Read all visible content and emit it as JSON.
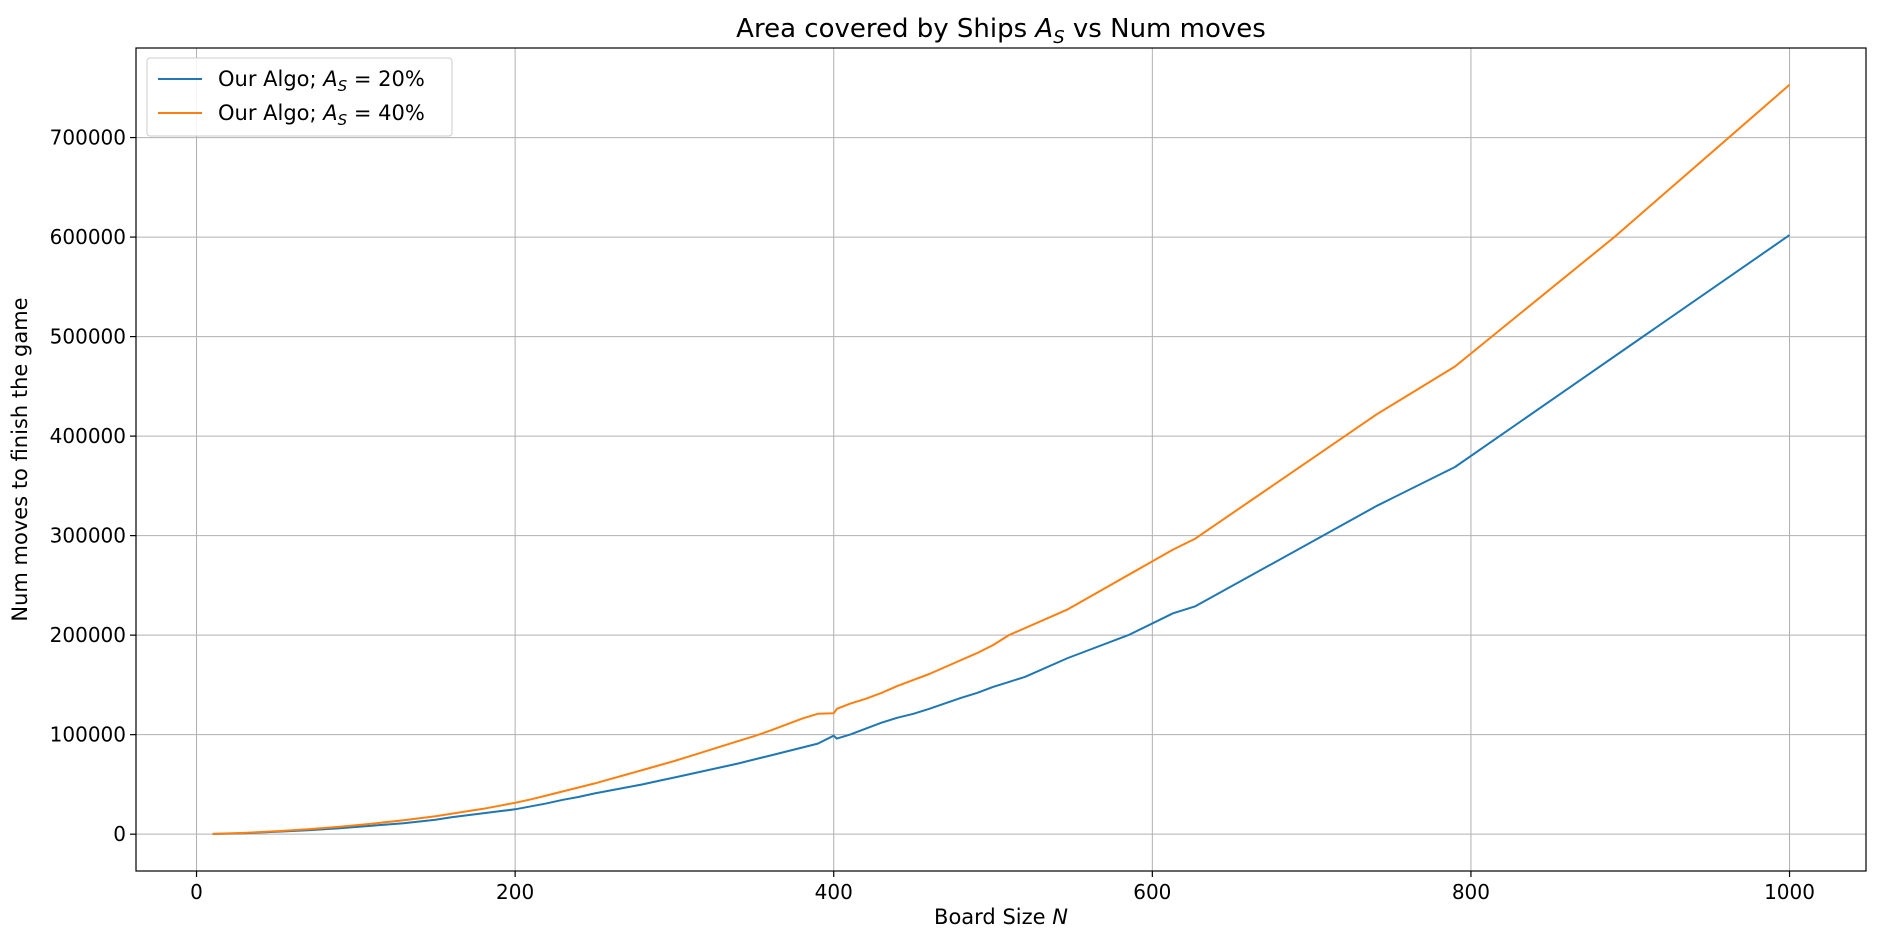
{
  "chart_data": {
    "type": "line",
    "title": "Area covered by Ships A_S vs Num moves",
    "title_parts": {
      "prefix": "Area covered by Ships ",
      "sym_main": "A",
      "sym_sub": "S",
      "suffix": " vs Num moves"
    },
    "xlabel": "Board Size N",
    "xlabel_parts": {
      "text": "Board Size ",
      "sym": "N"
    },
    "ylabel": "Num moves to finish the game",
    "xlim": [
      -38,
      1048
    ],
    "ylim": [
      -37000,
      790000
    ],
    "xticks": [
      0,
      200,
      400,
      600,
      800,
      1000
    ],
    "xtick_labels": [
      "0",
      "200",
      "400",
      "600",
      "800",
      "1000"
    ],
    "yticks": [
      0,
      100000,
      200000,
      300000,
      400000,
      500000,
      600000,
      700000
    ],
    "ytick_labels": [
      "0",
      "100000",
      "200000",
      "300000",
      "400000",
      "500000",
      "600000",
      "700000"
    ],
    "grid": true,
    "legend_position": "top-left",
    "series": [
      {
        "name": "Our Algo; A_S = 20%",
        "legend_parts": {
          "prefix": "Our Algo; ",
          "sym_main": "A",
          "sym_sub": "S",
          "suffix": " = 20%"
        },
        "color": "#1f77b4",
        "x": [
          10,
          30,
          50,
          70,
          90,
          110,
          130,
          150,
          160,
          170,
          180,
          190,
          200,
          210,
          220,
          230,
          240,
          250,
          260,
          270,
          280,
          290,
          300,
          310,
          320,
          330,
          340,
          350,
          360,
          370,
          380,
          390,
          400,
          402,
          410,
          420,
          430,
          440,
          450,
          460,
          470,
          480,
          490,
          500,
          510,
          520,
          547,
          585,
          613,
          627,
          741,
          790,
          890,
          1000
        ],
        "y": [
          200,
          1000,
          2500,
          4000,
          6000,
          8500,
          11000,
          14500,
          17000,
          19000,
          21000,
          23000,
          25000,
          28000,
          31000,
          34500,
          37500,
          41000,
          44000,
          47000,
          50000,
          53500,
          57000,
          60500,
          64000,
          67500,
          71000,
          75000,
          79000,
          83000,
          87000,
          91000,
          99000,
          96000,
          100000,
          106000,
          112000,
          117000,
          121000,
          126000,
          131500,
          137000,
          142000,
          148000,
          153000,
          158000,
          177000,
          200000,
          222000,
          229000,
          330000,
          369000,
          480000,
          602000
        ]
      },
      {
        "name": "Our Algo; A_S = 40%",
        "legend_parts": {
          "prefix": "Our Algo; ",
          "sym_main": "A",
          "sym_sub": "S",
          "suffix": " = 40%"
        },
        "color": "#ff7f0e",
        "x": [
          10,
          30,
          50,
          70,
          90,
          110,
          130,
          150,
          160,
          170,
          180,
          190,
          200,
          210,
          220,
          230,
          240,
          250,
          260,
          270,
          280,
          290,
          300,
          310,
          320,
          330,
          340,
          350,
          360,
          370,
          380,
          390,
          400,
          402,
          410,
          420,
          430,
          440,
          450,
          460,
          470,
          480,
          490,
          500,
          510,
          547,
          613,
          627,
          741,
          790,
          890,
          1000
        ],
        "y": [
          300,
          1300,
          3000,
          5000,
          7500,
          10500,
          14000,
          18000,
          20500,
          23000,
          25500,
          28500,
          31500,
          35000,
          39000,
          43000,
          47000,
          51000,
          55500,
          60000,
          64500,
          69000,
          73500,
          78500,
          83500,
          88500,
          93500,
          98500,
          104000,
          110000,
          116000,
          121000,
          121500,
          126000,
          131000,
          136000,
          142000,
          149000,
          155000,
          161000,
          168000,
          175000,
          182000,
          190000,
          200000,
          226000,
          286000,
          297000,
          422000,
          470000,
          600000,
          753000
        ]
      }
    ]
  }
}
